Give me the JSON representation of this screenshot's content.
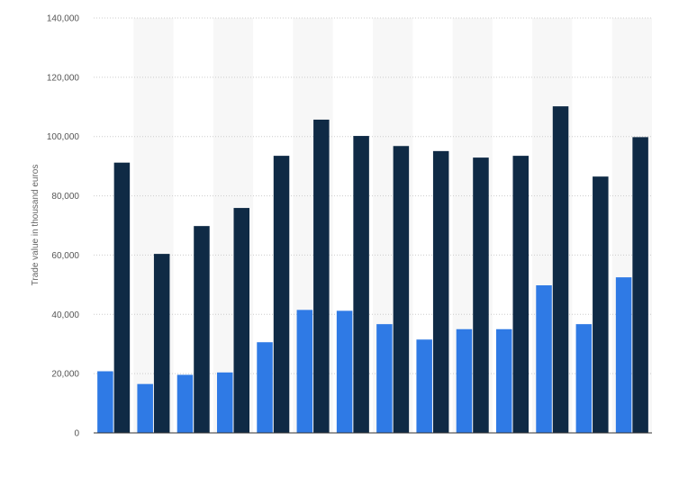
{
  "chart_data": {
    "type": "bar",
    "title": "",
    "xlabel": "",
    "ylabel": "Trade value in thousand euros",
    "categories": [
      "",
      "",
      "",
      "",
      "",
      "",
      "",
      "",
      "",
      "",
      "",
      "",
      "",
      ""
    ],
    "series": [
      {
        "color": "#2f7ae5",
        "values": [
          20800,
          16500,
          19600,
          20400,
          30600,
          41500,
          41200,
          36700,
          31500,
          35000,
          35000,
          49800,
          36700,
          52500
        ]
      },
      {
        "color": "#0f2a45",
        "values": [
          91200,
          60400,
          69800,
          75900,
          93500,
          105700,
          100200,
          96800,
          95100,
          92900,
          93500,
          110200,
          86500,
          99800
        ]
      }
    ],
    "yticks": [
      "0",
      "20,000",
      "40,000",
      "60,000",
      "80,000",
      "100,000",
      "120,000",
      "140,000"
    ],
    "ylim": [
      0,
      140000
    ],
    "grid": true,
    "legend": "none"
  }
}
